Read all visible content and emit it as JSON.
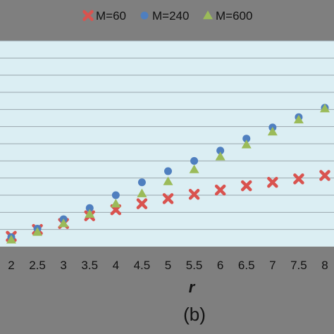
{
  "chart_data": {
    "type": "scatter",
    "x": [
      2,
      2.5,
      3,
      3.5,
      4,
      4.5,
      5,
      5.5,
      6,
      6.5,
      7,
      7.5,
      8
    ],
    "x_tick_labels": [
      "2",
      "2.5",
      "3",
      "3.5",
      "4",
      "4.5",
      "5",
      "5.5",
      "6",
      "6.5",
      "7",
      "7.5",
      "8"
    ],
    "series": [
      {
        "name": "M=60",
        "marker": "x",
        "color": "#d9534f",
        "values": [
          0.6,
          1.0,
          1.35,
          1.8,
          2.15,
          2.5,
          2.8,
          3.05,
          3.3,
          3.55,
          3.75,
          3.95,
          4.15
        ]
      },
      {
        "name": "M=240",
        "marker": "circle",
        "color": "#4f7fbf",
        "values": [
          0.55,
          1.05,
          1.6,
          2.25,
          3.0,
          3.75,
          4.4,
          5.0,
          5.6,
          6.3,
          6.95,
          7.55,
          8.1
        ]
      },
      {
        "name": "M=600",
        "marker": "triangle",
        "color": "#9bbb59",
        "values": [
          0.4,
          0.85,
          1.35,
          1.9,
          2.5,
          3.1,
          3.8,
          4.5,
          5.25,
          5.95,
          6.7,
          7.4,
          8.05
        ]
      }
    ],
    "xlabel": "r",
    "ylim": [
      0,
      12
    ],
    "y_gridlines": [
      1,
      2,
      3,
      4,
      5,
      6,
      7,
      8,
      9,
      10,
      11,
      12
    ],
    "grid": true,
    "legend": "top",
    "panel_label": "(b)",
    "colors": {
      "plot_background": "#dbeef3",
      "frame_background": "#7f7f7f",
      "gridline": "#9aa7ad"
    }
  }
}
